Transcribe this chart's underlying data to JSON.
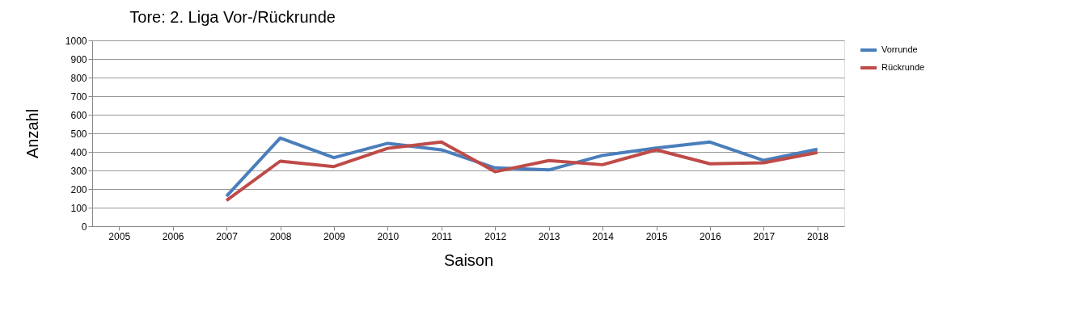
{
  "chart_data": {
    "type": "line",
    "title": "Tore: 2. Liga Vor-/Rückrunde",
    "xlabel": "Saison",
    "ylabel": "Anzahl",
    "categories": [
      "2005",
      "2006",
      "2007",
      "2008",
      "2009",
      "2010",
      "2011",
      "2012",
      "2013",
      "2014",
      "2015",
      "2016",
      "2017",
      "2018"
    ],
    "series": [
      {
        "name": "Vorrunde",
        "color": "#4a7ebb",
        "values": [
          null,
          null,
          161,
          474,
          369,
          446,
          411,
          314,
          303,
          381,
          421,
          453,
          354,
          414
        ]
      },
      {
        "name": "Rückrunde",
        "color": "#be4b48",
        "values": [
          null,
          null,
          139,
          350,
          321,
          419,
          453,
          293,
          353,
          331,
          411,
          336,
          341,
          397
        ]
      }
    ],
    "ylim": [
      0,
      1000
    ],
    "yticks": [
      0,
      100,
      200,
      300,
      400,
      500,
      600,
      700,
      800,
      900,
      1000
    ],
    "grid": "y",
    "legend": "right",
    "marker": "none",
    "line_style": "solid"
  }
}
